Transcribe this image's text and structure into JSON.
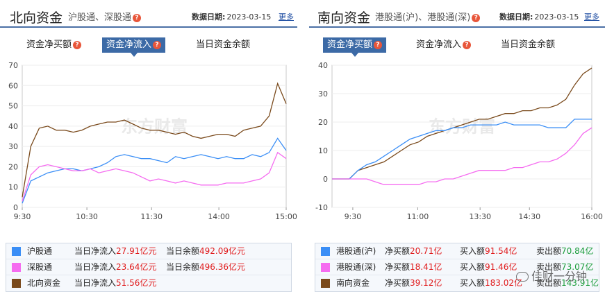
{
  "north": {
    "title": "北向资金",
    "subtitle": "沪股通、深股通",
    "date_label": "数据日期:",
    "date": "2023-03-15",
    "more": "更多",
    "tabs": [
      "资金净买额",
      "资金净流入",
      "当日资金余额"
    ],
    "active_tab": 1,
    "chart_data": {
      "type": "line",
      "x_ticks": [
        "9:30",
        "10:30",
        "11:30",
        "14:00",
        "15:00"
      ],
      "y_ticks": [
        0,
        10,
        20,
        30,
        40,
        50,
        60,
        70
      ],
      "ylim": [
        0,
        70
      ],
      "series": [
        {
          "name": "沪股通",
          "color": "#3a8ef6",
          "values": [
            2,
            13,
            15,
            17,
            18,
            19,
            19,
            18,
            19,
            20,
            22,
            25,
            26,
            25,
            24,
            24,
            23,
            22,
            25,
            24,
            25,
            26,
            25,
            24,
            25,
            24,
            24,
            26,
            25,
            27,
            34,
            28
          ]
        },
        {
          "name": "深股通",
          "color": "#f56cf0",
          "values": [
            3,
            16,
            20,
            21,
            20,
            19,
            18,
            18,
            19,
            17,
            18,
            19,
            18,
            17,
            15,
            13,
            14,
            13,
            12,
            13,
            12,
            11,
            11,
            11,
            12,
            12,
            12,
            13,
            14,
            17,
            27,
            24
          ]
        },
        {
          "name": "北向资金",
          "color": "#7a4a1c",
          "values": [
            5,
            30,
            39,
            40,
            38,
            38,
            37,
            38,
            40,
            41,
            42,
            42,
            43,
            41,
            39,
            38,
            38,
            37,
            36,
            37,
            35,
            34,
            35,
            36,
            36,
            35,
            38,
            39,
            40,
            45,
            61,
            51
          ]
        }
      ]
    },
    "legend": [
      {
        "name": "沪股通",
        "color": "#3a8ef6",
        "label1": "当日净流入",
        "value1": "27.91亿元",
        "label2": "当日余额",
        "value2": "492.09亿元"
      },
      {
        "name": "深股通",
        "color": "#f56cf0",
        "label1": "当日净流入",
        "value1": "23.64亿元",
        "label2": "当日余额",
        "value2": "496.36亿元"
      },
      {
        "name": "北向资金",
        "color": "#7a4a1c",
        "label1": "当日净流入",
        "value1": "51.56亿元",
        "label2": "",
        "value2": ""
      }
    ]
  },
  "south": {
    "title": "南向资金",
    "subtitle": "港股通(沪)、港股通(深)",
    "date_label": "数据日期:",
    "date": "2023-03-15",
    "more": "更多",
    "tabs": [
      "资金净买额",
      "资金净流入",
      "当日资金余额"
    ],
    "active_tab": 0,
    "chart_data": {
      "type": "line",
      "x_ticks": [
        "9:30",
        "11:00",
        "13:30",
        "14:30",
        "16:00"
      ],
      "y_ticks": [
        -10,
        0,
        10,
        20,
        30,
        40
      ],
      "ylim": [
        -10,
        40
      ],
      "series": [
        {
          "name": "港股通(沪)",
          "color": "#3a8ef6",
          "values": [
            0,
            0,
            0,
            3,
            5,
            6,
            8,
            10,
            12,
            14,
            15,
            16,
            17,
            17,
            18,
            18,
            19,
            19,
            19,
            19,
            20,
            19,
            19,
            19,
            19,
            18,
            18,
            18,
            21,
            21,
            21
          ]
        },
        {
          "name": "港股通(深)",
          "color": "#f56cf0",
          "values": [
            0,
            0,
            0,
            0,
            0,
            -1,
            -2,
            -2,
            -2,
            -2,
            -2,
            -1,
            -1,
            0,
            0,
            1,
            2,
            3,
            3,
            3,
            3,
            4,
            4,
            5,
            6,
            6,
            7,
            9,
            12,
            16,
            18
          ]
        },
        {
          "name": "南向资金",
          "color": "#7a4a1c",
          "values": [
            0,
            0,
            0,
            3,
            4,
            5,
            6,
            8,
            10,
            12,
            13,
            15,
            16,
            17,
            18,
            19,
            20,
            21,
            21,
            22,
            23,
            23,
            24,
            24,
            25,
            25,
            26,
            28,
            33,
            37,
            39
          ]
        }
      ]
    },
    "legend": [
      {
        "name": "港股通(沪)",
        "color": "#3a8ef6",
        "label1": "净买额",
        "value1": "20.71亿",
        "label2": "买入额",
        "value2": "91.54亿",
        "label3": "卖出额",
        "value3": "70.84亿"
      },
      {
        "name": "港股通(深)",
        "color": "#f56cf0",
        "label1": "净买额",
        "value1": "18.41亿",
        "label2": "买入额",
        "value2": "91.46亿",
        "label3": "卖出额",
        "value3": "73.07亿"
      },
      {
        "name": "南向资金",
        "color": "#7a4a1c",
        "label1": "净买额",
        "value1": "39.12亿",
        "label2": "买入额",
        "value2": "183.02亿",
        "label3": "卖出额",
        "value3": "143.91亿"
      }
    ]
  },
  "watermark": {
    "text": "佳财一分钟",
    "chart_mark": "东方财富"
  }
}
